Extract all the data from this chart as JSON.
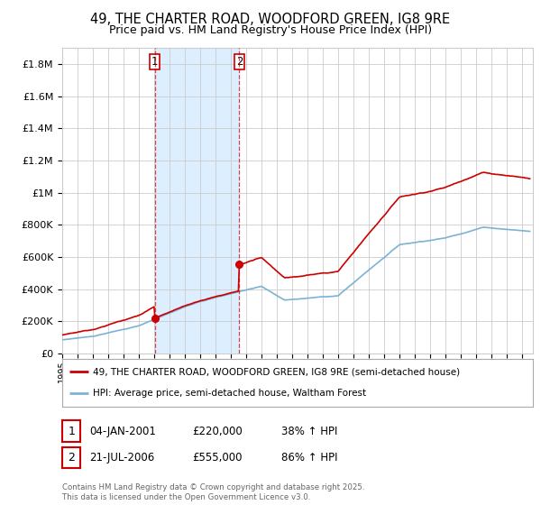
{
  "title": "49, THE CHARTER ROAD, WOODFORD GREEN, IG8 9RE",
  "subtitle": "Price paid vs. HM Land Registry's House Price Index (HPI)",
  "title_fontsize": 10.5,
  "subtitle_fontsize": 9,
  "ylim": [
    0,
    1900000
  ],
  "background_color": "#ffffff",
  "plot_bg_color": "#ffffff",
  "grid_color": "#cccccc",
  "red_line_color": "#cc0000",
  "blue_line_color": "#7ab3d4",
  "shade_color": "#ddeeff",
  "vline1_x": 2001.03,
  "vline2_x": 2006.55,
  "point1_x": 2001.03,
  "point1_y": 220000,
  "point2_x": 2006.55,
  "point2_y": 555000,
  "yticks": [
    0,
    200000,
    400000,
    600000,
    800000,
    1000000,
    1200000,
    1400000,
    1600000,
    1800000
  ],
  "ytick_labels": [
    "£0",
    "£200K",
    "£400K",
    "£600K",
    "£800K",
    "£1M",
    "£1.2M",
    "£1.4M",
    "£1.6M",
    "£1.8M"
  ],
  "legend_line1": "49, THE CHARTER ROAD, WOODFORD GREEN, IG8 9RE (semi-detached house)",
  "legend_line2": "HPI: Average price, semi-detached house, Waltham Forest",
  "footnote": "Contains HM Land Registry data © Crown copyright and database right 2025.\nThis data is licensed under the Open Government Licence v3.0.",
  "table_rows": [
    {
      "num": "1",
      "date": "04-JAN-2001",
      "price": "£220,000",
      "change": "38% ↑ HPI"
    },
    {
      "num": "2",
      "date": "21-JUL-2006",
      "price": "£555,000",
      "change": "86% ↑ HPI"
    }
  ],
  "xmin": 1995,
  "xmax": 2025.7
}
